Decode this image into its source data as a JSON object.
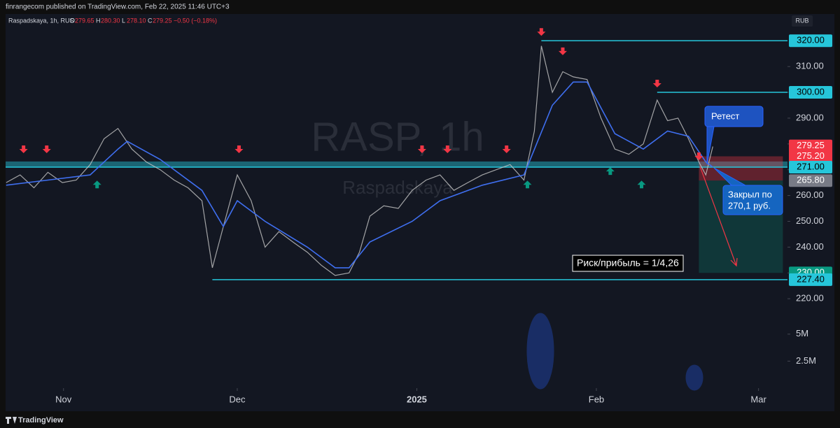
{
  "header": {
    "publisher": "finrangecom published on TradingView.com, Feb 22, 2025 11:46 UTC+3",
    "footer": "TradingView"
  },
  "chart_data": {
    "type": "line",
    "title": "Raspadskaya, 1h, RUS",
    "ohlc": {
      "names": [
        "O",
        "H",
        "L",
        "C"
      ],
      "values": [
        279.65,
        280.3,
        278.1,
        279.25
      ],
      "value_labels": [
        "279.65",
        "280.30",
        "278.10",
        "279.25"
      ]
    },
    "change": "−0.50 (−0.18%)",
    "watermark": [
      "RASP, 1h",
      "Raspadskaya"
    ],
    "currency": "RUB",
    "color": "#c8c8c8",
    "x": [
      -9.9,
      -7.5,
      -5.1,
      -2.7,
      -0.2,
      2.2,
      4.6,
      7.0,
      9.4,
      11.8,
      14.3,
      16.7,
      19.1,
      21.5,
      23.9,
      25.7,
      27.6,
      30.0,
      32.4,
      34.8,
      37.2,
      39.6,
      42.1,
      44.5,
      46.9,
      49.3,
      51.1,
      52.9,
      55.3,
      57.8,
      60.2,
      62.6,
      65.0,
      67.4,
      69.8,
      72.3,
      74.7,
      77.1,
      79.5,
      81.3,
      82.5,
      84.4,
      86.2,
      88.0,
      90.4,
      92.8,
      95.2,
      97.6,
      100.1,
      102.5,
      104.3,
      106.1,
      107.9,
      109.7,
      110.9,
      112.1
    ],
    "values": [
      265,
      268,
      263,
      269,
      265,
      266,
      272,
      282,
      286,
      278,
      273,
      270,
      266,
      263,
      258,
      232,
      248,
      268,
      258,
      240,
      246,
      242,
      238,
      233,
      229,
      230,
      238,
      252,
      256,
      255,
      262,
      266,
      268,
      262,
      265,
      268,
      270,
      272,
      266,
      285,
      318,
      300,
      308,
      306,
      305,
      290,
      278,
      276,
      280,
      297,
      289,
      290,
      282,
      273,
      268,
      279
    ],
    "ma": {
      "color": "#3f6ff0",
      "x": [
        -9.9,
        -2.7,
        4.6,
        9.4,
        11.0,
        16.7,
        23.9,
        27.6,
        30.0,
        34.8,
        42.1,
        46.9,
        49.3,
        52.9,
        60.2,
        65.0,
        72.3,
        79.5,
        84.4,
        88.0,
        90.4,
        95.2,
        100.1,
        104.3,
        107.9,
        110.9,
        112.1
      ],
      "values": [
        264,
        266,
        268,
        278,
        281,
        274,
        262,
        248,
        258,
        250,
        240,
        232,
        232,
        242,
        250,
        258,
        264,
        268,
        295,
        304,
        304,
        284,
        278,
        285,
        283,
        273,
        271
      ]
    },
    "xlim": [
      -10,
      125
    ],
    "xticks": [
      {
        "value": 0,
        "label": "Nov"
      },
      {
        "value": 30,
        "label": "Dec"
      },
      {
        "value": 61,
        "label": "2025"
      },
      {
        "value": 92,
        "label": "Feb"
      },
      {
        "value": 120,
        "label": "Mar"
      }
    ],
    "ylim": [
      213.8,
      323.6
    ],
    "yticks": [
      {
        "value": 220,
        "label": "220.00"
      },
      {
        "value": 230,
        "label": "230.00"
      },
      {
        "value": 240,
        "label": "240.00"
      },
      {
        "value": 250,
        "label": "250.00"
      },
      {
        "value": 260,
        "label": "260.00"
      },
      {
        "value": 270,
        "label": "270.00"
      },
      {
        "value": 280,
        "label": "280.00"
      },
      {
        "value": 290,
        "label": "290.00"
      },
      {
        "value": 300,
        "label": "300.00"
      },
      {
        "value": 310,
        "label": "310.00"
      }
    ],
    "levels": [
      {
        "value": 320,
        "label": "320.00",
        "from": 82.5,
        "color": "#26c6da"
      },
      {
        "value": 300,
        "label": "300.00",
        "from": 102.5,
        "color": "#26c6da"
      },
      {
        "value": 279.25,
        "label": "279.25",
        "from": null,
        "color": "#f23645"
      },
      {
        "value": 275.2,
        "label": "275.20",
        "from": null,
        "color": "#f23645"
      },
      {
        "value": 271,
        "label": "271.00",
        "from": -10,
        "color": "#26c6da"
      },
      {
        "value": 265.8,
        "label": "265.80",
        "from": null,
        "color": "#787b86"
      },
      {
        "value": 230,
        "label": "230.00",
        "from": null,
        "color": "#089981"
      },
      {
        "value": 227.4,
        "label": "227.40",
        "from": 25.7,
        "color": "#26c6da"
      }
    ],
    "zone": [
      271,
      273.2
    ],
    "position": {
      "from": 109.7,
      "to": 124.2,
      "entry": 265.8,
      "stop": 275.2,
      "target": 230
    },
    "signals": {
      "sell": {
        "x": [
          -6.9,
          -2.9,
          30.3,
          61.9,
          66.3,
          76.5,
          82.5,
          86.2,
          102.5,
          109.7
        ],
        "y": [
          277.5,
          277.5,
          277.5,
          277.5,
          277.5,
          277.5,
          323,
          315.5,
          303,
          274.8
        ]
      },
      "buy": {
        "x": [
          5.8,
          80.1,
          94.4,
          99.8
        ],
        "y": [
          264.7,
          264.7,
          269.9,
          264.7
        ]
      }
    },
    "annotations": [
      "Ретест",
      "Закрыл по",
      "270,1 руб.",
      "Риск/прибыль = 1/4,26"
    ],
    "volume": {
      "ylim": [
        0,
        6800000
      ],
      "yticks": [
        {
          "value": 2500000,
          "label": "2.5M"
        },
        {
          "value": 5000000,
          "label": "5M"
        }
      ]
    }
  }
}
